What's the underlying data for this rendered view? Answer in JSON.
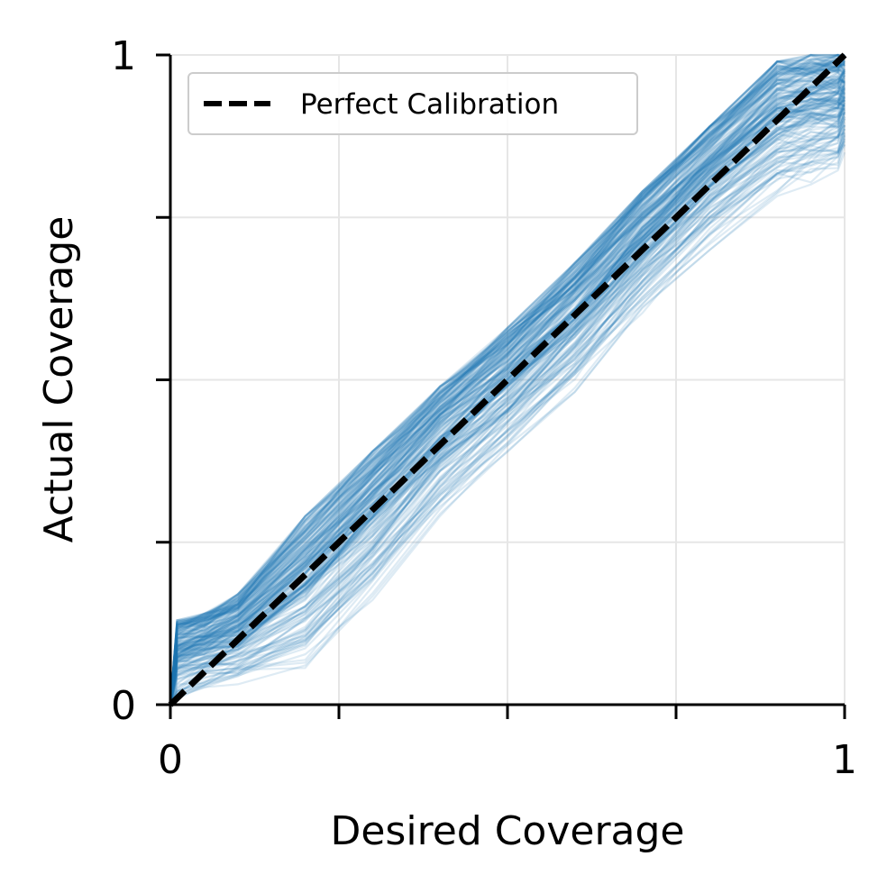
{
  "chart_data": {
    "type": "line",
    "title": "",
    "xlabel": "Desired Coverage",
    "ylabel": "Actual Coverage",
    "xlim": [
      0,
      1
    ],
    "ylim": [
      0,
      1
    ],
    "x_ticks": [
      0,
      0.25,
      0.5,
      0.75,
      1
    ],
    "y_ticks": [
      0,
      0.25,
      0.5,
      0.75,
      1
    ],
    "x_tick_labels": [
      "0",
      "",
      "",
      "",
      "1"
    ],
    "y_tick_labels": [
      "0",
      "",
      "",
      "",
      "1"
    ],
    "grid": true,
    "legend": {
      "placement": "top-left",
      "entries": [
        "Perfect Calibration"
      ]
    },
    "series": [
      {
        "name": "Perfect Calibration",
        "style": "dashed",
        "color": "#000000",
        "x": [
          0,
          1
        ],
        "y": [
          0,
          1
        ]
      }
    ],
    "bundle": {
      "color": "#1f77b4",
      "count": 200,
      "x": [
        0,
        0.01,
        0.05,
        0.1,
        0.2,
        0.3,
        0.4,
        0.5,
        0.6,
        0.7,
        0.8,
        0.9,
        0.95,
        0.99,
        1.0
      ],
      "y_upper": [
        0,
        0.13,
        0.14,
        0.17,
        0.29,
        0.39,
        0.49,
        0.58,
        0.68,
        0.79,
        0.89,
        0.99,
        1.0,
        1.0,
        1.0
      ],
      "y_lower": [
        0,
        0.0,
        0.02,
        0.03,
        0.05,
        0.16,
        0.29,
        0.38,
        0.48,
        0.6,
        0.7,
        0.78,
        0.8,
        0.82,
        0.85
      ]
    }
  }
}
